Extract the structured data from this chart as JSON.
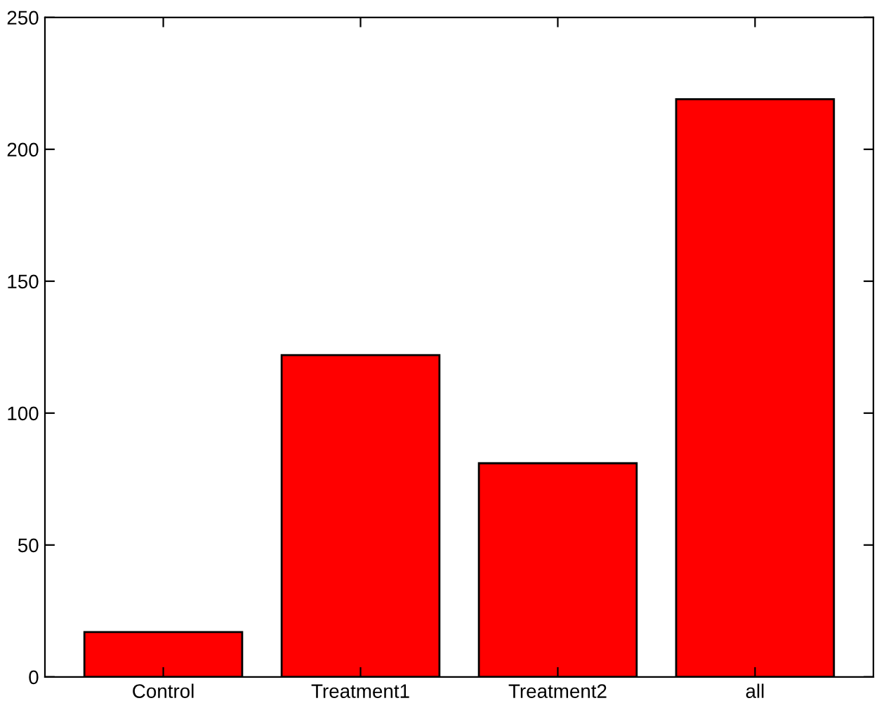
{
  "chart_data": {
    "type": "bar",
    "categories": [
      "Control",
      "Treatment1",
      "Treatment2",
      "all"
    ],
    "values": [
      17,
      122,
      81,
      219
    ],
    "color": "#ff0000",
    "ylim": [
      0,
      250
    ],
    "yticks": [
      0,
      50,
      100,
      150,
      200,
      250
    ],
    "grid": false
  }
}
